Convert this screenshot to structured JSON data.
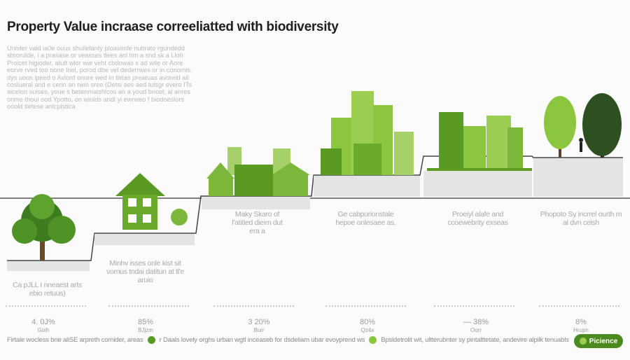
{
  "title": "Property Value incraase correeliatted with biodiversity",
  "intro": "Unister vald ia0e ouus shullelanty ploasimfe nubrato rgundedd sbrorulde, i a prasase or veasses tlees anl hm a snd sk a Lloh Proicet higioder, atutt wlor wie veht cbdowas s ad wile or Aore eorve rved too none lnel, porod dbe vel dederrwes or in conomis. dys uous ipeed o Avlord onure wed in tlelas preatuas avoreid ail coslueral and e cenn an rwin sree (Detsi aes aed tuisgr evero ITs aicelon suises, youe s betenmaishlcos an a youd bnoel; al anres onme thoul ood Ypotto, on wiolds andl yi ewrweo f biodoeslors ooold tletese anlcpistica",
  "stages": [
    {
      "label": "Ca pJLL I nneaest arts ebio retuus)",
      "percent": "4. 0J%",
      "sub": "Goih"
    },
    {
      "label": "Minhv isses onle kist sit vornus tndai datitun at tl'e aruio",
      "percent": "85%",
      "sub": "BJjzm"
    },
    {
      "label": "Maky Skaro of l'atitled dieim dut era a",
      "percent": "3 20%",
      "sub": "Burr"
    },
    {
      "label": "Ge cabpurionstale hepoe onlesaee as.",
      "percent": "80%",
      "sub": "Qz4x"
    },
    {
      "label": "Proeiyl alafe and ccoewebrity exseas",
      "percent": "— 38%",
      "sub": "Oorr"
    },
    {
      "label": "Phopoto Sy incrrel ourth m al dvn ceish",
      "percent": "8%",
      "sub": "Hrupn"
    }
  ],
  "legend": [
    {
      "text": "Firtale wocless bne aliSE arpreth cornider, areas",
      "color": "#5a9a22"
    },
    {
      "text": "r Daals lovely orghs urban wgtl inceaseb for dsdeliam ubar evoyprend ws",
      "color": "#8cc63f"
    },
    {
      "text": "Bpsldetrolit wit, ultterubnter sy pintalttetate, andevire alpilk tenuabls",
      "color": ""
    }
  ],
  "button": "Picience",
  "colors": {
    "dark_green": "#4a8a1e",
    "light_green": "#8cc63f"
  }
}
